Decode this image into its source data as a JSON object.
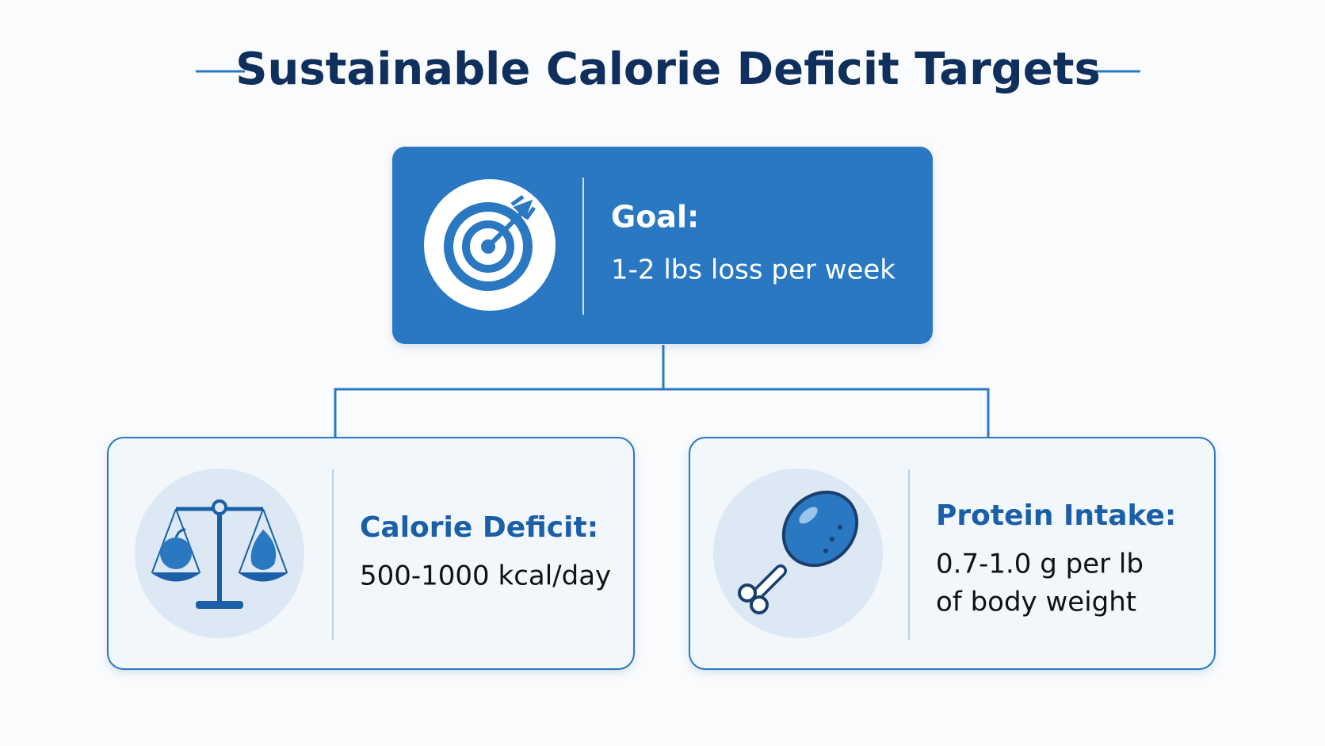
{
  "header": {
    "title": "Sustainable Calorie Deficit Targets"
  },
  "nodes": [
    {
      "label": "Goal:",
      "lines": [
        "1-2 lbs loss per week"
      ]
    },
    {
      "label": "Calorie Deficit:",
      "lines": [
        "500-1000 kcal/day"
      ]
    },
    {
      "label": "Protein Intake:",
      "lines": [
        "0.7-1.0 g per lb",
        "of body weight"
      ]
    }
  ]
}
